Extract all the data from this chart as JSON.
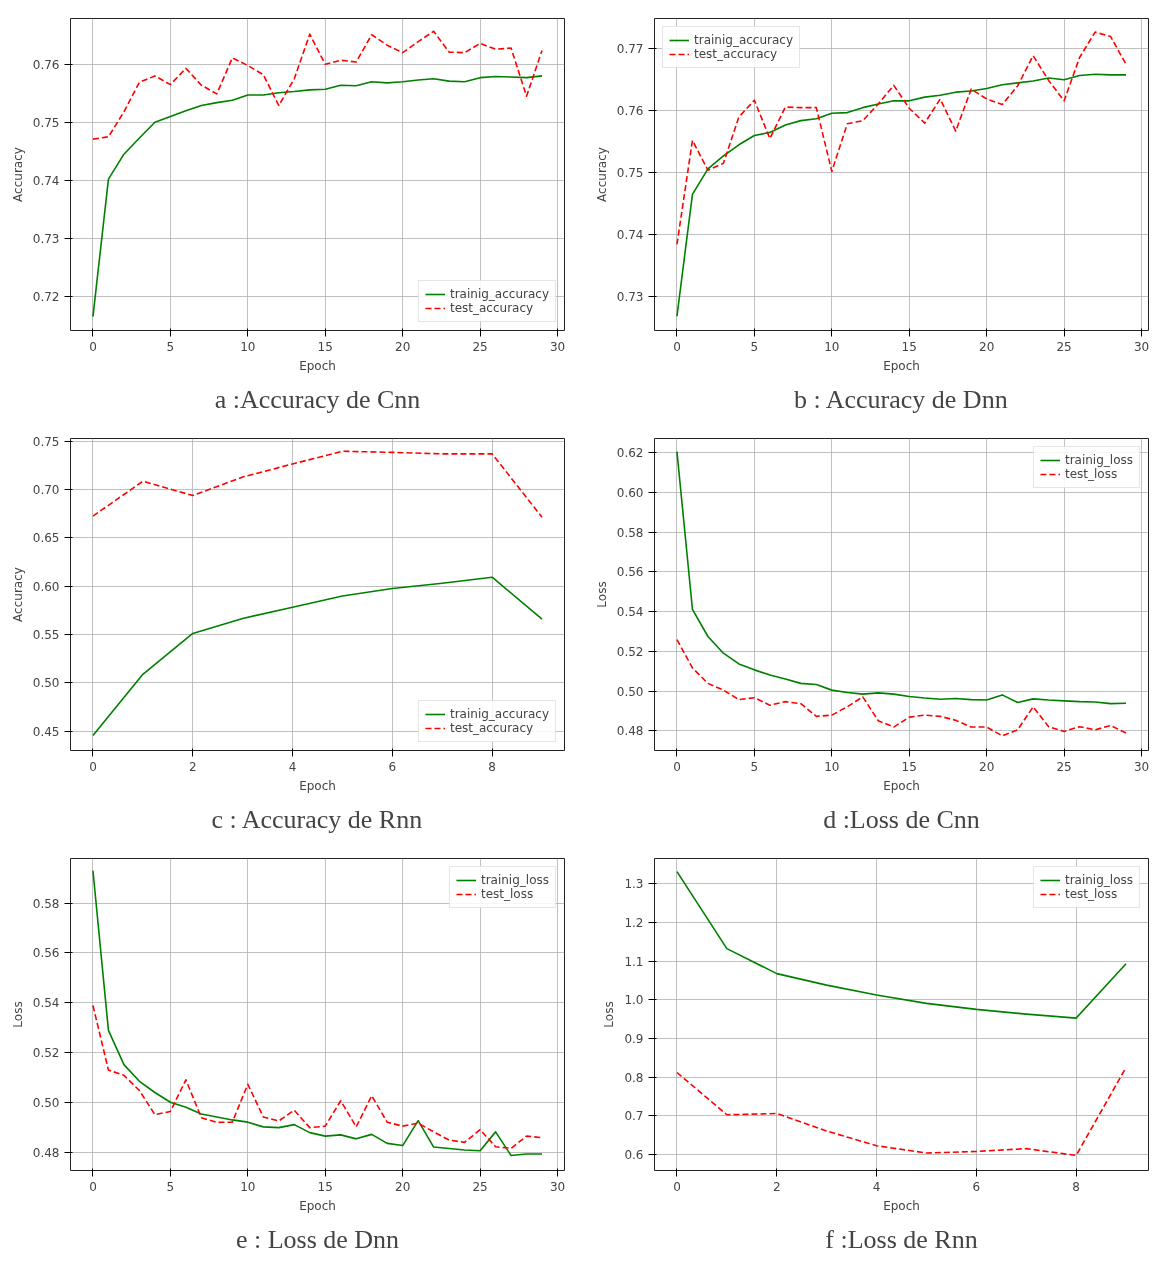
{
  "chart_data": [
    {
      "type": "line",
      "title": "a :Accuracy de Cnn",
      "xlabel": "Epoch",
      "ylabel": "Accuracy",
      "x": [
        0,
        1,
        2,
        3,
        4,
        5,
        6,
        7,
        8,
        9,
        10,
        11,
        12,
        13,
        14,
        15,
        16,
        17,
        18,
        19,
        20,
        21,
        22,
        23,
        24,
        25,
        26,
        27,
        28,
        29
      ],
      "xlim": [
        -1.45,
        30.45
      ],
      "xticks": [
        0,
        5,
        10,
        15,
        20,
        25,
        30
      ],
      "ylim": [
        0.7142,
        0.768
      ],
      "yticks": [
        0.72,
        0.73,
        0.74,
        0.75,
        0.76
      ],
      "grid": true,
      "legend": "bottom right",
      "series": [
        {
          "name": "trainig_accuracy",
          "color": "#008000",
          "line_style": "solid",
          "values": [
            0.7166,
            0.7403,
            0.7446,
            0.7474,
            0.7501,
            0.7511,
            0.7521,
            0.753,
            0.7535,
            0.7539,
            0.7548,
            0.7548,
            0.7552,
            0.7554,
            0.7557,
            0.7558,
            0.7565,
            0.7564,
            0.7571,
            0.7569,
            0.7571,
            0.7574,
            0.7576,
            0.7572,
            0.7571,
            0.7578,
            0.758,
            0.7579,
            0.7578,
            0.7581
          ]
        },
        {
          "name": "test_accuracy",
          "color": "#ff0000",
          "line_style": "dashed",
          "values": [
            0.7472,
            0.7476,
            0.7519,
            0.757,
            0.7581,
            0.7566,
            0.7594,
            0.7565,
            0.755,
            0.7612,
            0.7599,
            0.7583,
            0.753,
            0.7576,
            0.7653,
            0.7601,
            0.7608,
            0.7605,
            0.7652,
            0.7634,
            0.7621,
            0.764,
            0.7658,
            0.7622,
            0.7621,
            0.7637,
            0.7627,
            0.7629,
            0.7546,
            0.7625
          ]
        }
      ]
    },
    {
      "type": "line",
      "title": "b : Accuracy de Dnn",
      "xlabel": "Epoch",
      "ylabel": "Accuracy",
      "x": [
        0,
        1,
        2,
        3,
        4,
        5,
        6,
        7,
        8,
        9,
        10,
        11,
        12,
        13,
        14,
        15,
        16,
        17,
        18,
        19,
        20,
        21,
        22,
        23,
        24,
        25,
        26,
        27,
        28,
        29
      ],
      "xlim": [
        -1.45,
        30.45
      ],
      "xticks": [
        0,
        5,
        10,
        15,
        20,
        25,
        30
      ],
      "ylim": [
        0.7245,
        0.7749
      ],
      "yticks": [
        0.73,
        0.74,
        0.75,
        0.76,
        0.77
      ],
      "grid": true,
      "legend": "top left",
      "series": [
        {
          "name": "trainig_accuracy",
          "color": "#008000",
          "line_style": "solid",
          "values": [
            0.7268,
            0.7465,
            0.7506,
            0.7527,
            0.7545,
            0.756,
            0.7565,
            0.7577,
            0.7584,
            0.7587,
            0.7596,
            0.7597,
            0.7605,
            0.7611,
            0.7616,
            0.7616,
            0.7622,
            0.7625,
            0.763,
            0.7632,
            0.7636,
            0.7642,
            0.7645,
            0.7648,
            0.7653,
            0.765,
            0.7657,
            0.7659,
            0.7658,
            0.7658
          ]
        },
        {
          "name": "test_accuracy",
          "color": "#ff0000",
          "line_style": "dashed",
          "values": [
            0.7384,
            0.7552,
            0.7504,
            0.7515,
            0.759,
            0.7617,
            0.7555,
            0.7606,
            0.7605,
            0.7605,
            0.7502,
            0.7579,
            0.7584,
            0.7611,
            0.7641,
            0.7604,
            0.758,
            0.7619,
            0.7567,
            0.7635,
            0.7619,
            0.761,
            0.764,
            0.7689,
            0.7649,
            0.7616,
            0.7686,
            0.7727,
            0.772,
            0.7675
          ]
        }
      ]
    },
    {
      "type": "line",
      "title": "c : Accuracy de Rnn",
      "xlabel": "Epoch",
      "ylabel": "Accuracy",
      "x": [
        0,
        1,
        2,
        3,
        4,
        5,
        6,
        7,
        8,
        9
      ],
      "xlim": [
        -0.45,
        9.45
      ],
      "xticks": [
        0,
        2,
        4,
        6,
        8
      ],
      "ylim": [
        0.4302,
        0.7527
      ],
      "yticks": [
        0.45,
        {
          "value": 0.5,
          "label": "0.50"
        },
        0.55,
        {
          "value": 0.6,
          "label": "0.60"
        },
        0.65,
        {
          "value": 0.7,
          "label": "0.70"
        },
        0.75
      ],
      "grid": true,
      "legend": "bottom right",
      "series": [
        {
          "name": "trainig_accuracy",
          "color": "#008000",
          "line_style": "solid",
          "values": [
            0.4457,
            0.5089,
            0.5512,
            0.5667,
            0.5783,
            0.5899,
            0.5977,
            0.6031,
            0.6093,
            0.5659
          ]
        },
        {
          "name": "test_accuracy",
          "color": "#ff0000",
          "line_style": "dashed",
          "values": [
            0.6725,
            0.7085,
            0.6938,
            0.7128,
            0.7264,
            0.7395,
            0.7384,
            0.7368,
            0.7368,
            0.6713
          ]
        }
      ]
    },
    {
      "type": "line",
      "title": "d :Loss de Cnn",
      "xlabel": "Epoch",
      "ylabel": "Loss",
      "x": [
        0,
        1,
        2,
        3,
        4,
        5,
        6,
        7,
        8,
        9,
        10,
        11,
        12,
        13,
        14,
        15,
        16,
        17,
        18,
        19,
        20,
        21,
        22,
        23,
        24,
        25,
        26,
        27,
        28,
        29
      ],
      "xlim": [
        -1.45,
        30.45
      ],
      "xticks": [
        0,
        5,
        10,
        15,
        20,
        25,
        30
      ],
      "ylim": [
        0.4701,
        0.6272
      ],
      "yticks": [
        0.48,
        {
          "value": 0.5,
          "label": "0.50"
        },
        0.52,
        0.54,
        0.56,
        0.58,
        {
          "value": 0.6,
          "label": "0.60"
        },
        0.62
      ],
      "grid": true,
      "legend": "top right",
      "series": [
        {
          "name": "trainig_loss",
          "color": "#008000",
          "line_style": "solid",
          "values": [
            0.6206,
            0.5412,
            0.5275,
            0.5191,
            0.5137,
            0.5107,
            0.5081,
            0.5061,
            0.5039,
            0.5033,
            0.5005,
            0.4993,
            0.4985,
            0.4991,
            0.4985,
            0.4973,
            0.4965,
            0.4959,
            0.4963,
            0.4957,
            0.4955,
            0.4981,
            0.4943,
            0.4961,
            0.4955,
            0.4951,
            0.4947,
            0.4945,
            0.4937,
            0.4939
          ]
        },
        {
          "name": "test_loss",
          "color": "#ff0000",
          "line_style": "dashed",
          "values": [
            0.5259,
            0.5117,
            0.5039,
            0.5005,
            0.4957,
            0.4967,
            0.4929,
            0.4947,
            0.4937,
            0.4873,
            0.4879,
            0.4921,
            0.4971,
            0.4851,
            0.4819,
            0.4869,
            0.4879,
            0.4873,
            0.4853,
            0.4819,
            0.4819,
            0.4775,
            0.4805,
            0.4921,
            0.4821,
            0.4797,
            0.4821,
            0.4805,
            0.4827,
            0.4789
          ]
        }
      ]
    },
    {
      "type": "line",
      "title": "e : Loss de Dnn",
      "xlabel": "Epoch",
      "ylabel": "Loss",
      "x": [
        0,
        1,
        2,
        3,
        4,
        5,
        6,
        7,
        8,
        9,
        10,
        11,
        12,
        13,
        14,
        15,
        16,
        17,
        18,
        19,
        20,
        21,
        22,
        23,
        24,
        25,
        26,
        27,
        28,
        29
      ],
      "xlim": [
        -1.45,
        30.45
      ],
      "xticks": [
        0,
        5,
        10,
        15,
        20,
        25,
        30
      ],
      "ylim": [
        0.4727,
        0.5979
      ],
      "yticks": [
        0.48,
        {
          "value": 0.5,
          "label": "0.50"
        },
        0.52,
        0.54,
        0.56,
        0.58
      ],
      "grid": true,
      "legend": "top right",
      "series": [
        {
          "name": "trainig_loss",
          "color": "#008000",
          "line_style": "solid",
          "values": [
            0.593,
            0.5289,
            0.5152,
            0.5085,
            0.504,
            0.5001,
            0.4981,
            0.4954,
            0.4942,
            0.493,
            0.4921,
            0.4902,
            0.4899,
            0.4911,
            0.4879,
            0.4865,
            0.487,
            0.4854,
            0.4872,
            0.4836,
            0.4827,
            0.4927,
            0.4821,
            0.4815,
            0.4809,
            0.4806,
            0.4882,
            0.4787,
            0.4793,
            0.4793
          ]
        },
        {
          "name": "test_loss",
          "color": "#ff0000",
          "line_style": "dashed",
          "values": [
            0.5389,
            0.513,
            0.5109,
            0.5048,
            0.4951,
            0.4964,
            0.5091,
            0.4939,
            0.492,
            0.4921,
            0.5073,
            0.4942,
            0.4926,
            0.4969,
            0.4899,
            0.4905,
            0.5007,
            0.4902,
            0.5027,
            0.4921,
            0.4905,
            0.4917,
            0.4882,
            0.4849,
            0.484,
            0.4891,
            0.4822,
            0.4816,
            0.4865,
            0.4859
          ]
        }
      ]
    },
    {
      "type": "line",
      "title": "f :Loss de Rnn",
      "xlabel": "Epoch",
      "ylabel": "Loss",
      "x": [
        0,
        1,
        2,
        3,
        4,
        5,
        6,
        7,
        8,
        9
      ],
      "xlim": [
        -0.45,
        9.45
      ],
      "xticks": [
        0,
        2,
        4,
        6,
        8
      ],
      "ylim": [
        0.5589,
        1.3657
      ],
      "yticks": [
        0.6,
        0.7,
        0.8,
        0.9,
        {
          "value": 1.0,
          "label": "1.0"
        },
        1.1,
        1.2,
        1.3
      ],
      "grid": true,
      "legend": "top right",
      "series": [
        {
          "name": "trainig_loss",
          "color": "#008000",
          "line_style": "solid",
          "values": [
            1.3318,
            1.1327,
            1.068,
            1.0383,
            1.0126,
            0.991,
            0.9756,
            0.9633,
            0.953,
            1.0937
          ]
        },
        {
          "name": "test_loss",
          "color": "#ff0000",
          "line_style": "dashed",
          "values": [
            0.8123,
            0.7031,
            0.7062,
            0.661,
            0.623,
            0.6041,
            0.6082,
            0.6154,
            0.5979,
            0.8255
          ]
        }
      ]
    }
  ]
}
